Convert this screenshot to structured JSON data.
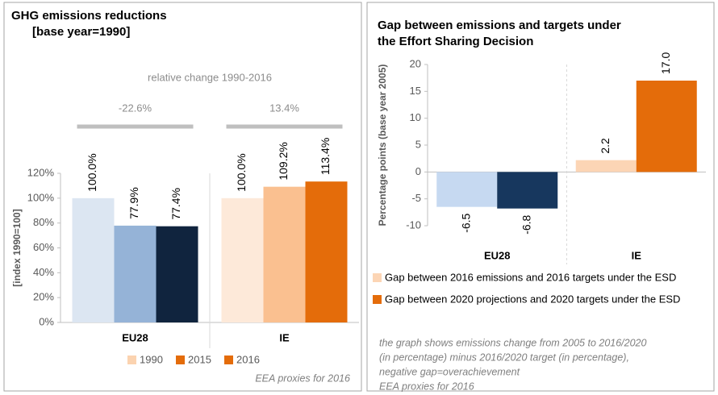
{
  "chart_data": [
    {
      "type": "bar",
      "title": [
        "GHG emissions reductions",
        "[base year=1990]"
      ],
      "subtitle": "relative change 1990-2016",
      "annotations": [
        "-22.6%",
        "13.4%"
      ],
      "y_label": "[index 1990=100]",
      "categories": [
        "EU28",
        "IE"
      ],
      "series": [
        {
          "name": "1990",
          "color": "#fbd3b0",
          "colors": [
            "#dce6f2",
            "#fde9d9"
          ],
          "values": [
            100,
            100
          ],
          "value_labels": [
            "100.0%",
            "100.0%"
          ]
        },
        {
          "name": "2015",
          "color": "#e46c0a",
          "colors": [
            "#95b3d7",
            "#fac090"
          ],
          "values": [
            77.9,
            109.2
          ],
          "value_labels": [
            "77.9%",
            "109.2%"
          ]
        },
        {
          "name": "2016",
          "color": "#e46c0a",
          "colors": [
            "#10243e",
            "#e46c0a"
          ],
          "values": [
            77.4,
            113.4
          ],
          "value_labels": [
            "77.4%",
            "113.4%"
          ]
        }
      ],
      "ylim": [
        0,
        120
      ],
      "yticks": [
        {
          "value": 0,
          "label": "0%"
        },
        {
          "value": 20,
          "label": "20%"
        },
        {
          "value": 40,
          "label": "40%"
        },
        {
          "value": 60,
          "label": "60%"
        },
        {
          "value": 80,
          "label": "80%"
        },
        {
          "value": 100,
          "label": "100%"
        },
        {
          "value": 120,
          "label": "120%"
        }
      ],
      "legend": "bottom",
      "notes": [
        "EEA proxies for 2016"
      ]
    },
    {
      "type": "bar",
      "title": [
        "Gap between emissions and targets under",
        "the Effort Sharing Decision"
      ],
      "y_label": "Percentage points (base year 2005)",
      "categories": [
        "EU28",
        "IE"
      ],
      "series": [
        {
          "name": "Gap between 2016 emissions and 2016 targets under the ESD",
          "color": "#fcd5b5",
          "colors": [
            "#c6d9f1",
            "#fcd5b5"
          ],
          "values": [
            -6.5,
            2.2
          ]
        },
        {
          "name": "Gap between 2020 projections and 2020 targets under the ESD",
          "color": "#e46c0a",
          "colors": [
            "#17375e",
            "#e46c0a"
          ],
          "values": [
            -6.8,
            17.0
          ],
          "value_labels": [
            "-6.8",
            "17.0"
          ]
        }
      ],
      "ylim": [
        -10,
        20
      ],
      "yticks": [
        -10,
        -5,
        0,
        5,
        10,
        15,
        20
      ],
      "legend": "right",
      "notes": [
        "the graph shows emissions change from 2005 to 2016/2020",
        "(in percentage) minus  2016/2020 target (in percentage),",
        "negative gap=overachievement",
        "EEA proxies for 2016"
      ]
    }
  ]
}
